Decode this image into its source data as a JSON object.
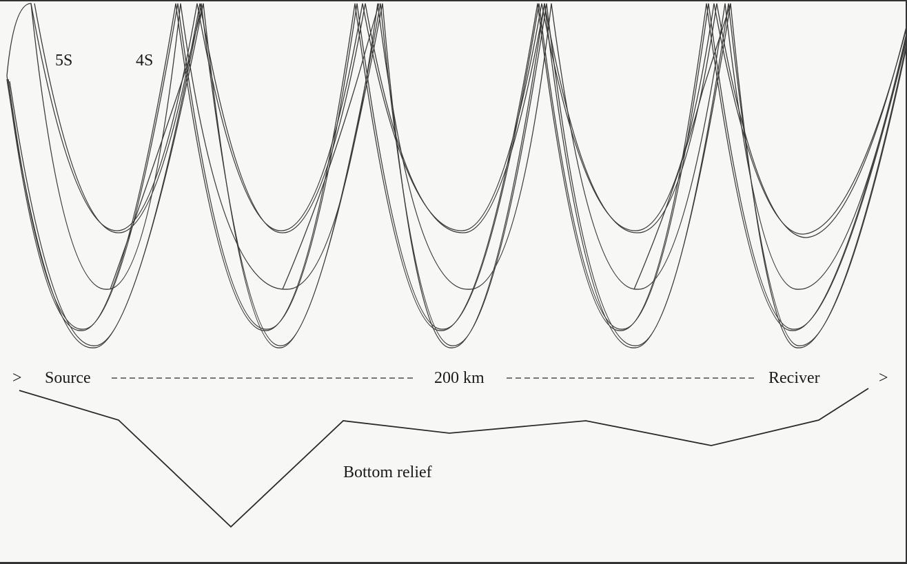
{
  "labels": {
    "ray_5s": "5S",
    "ray_4s": "4S",
    "arrow_left": ">",
    "source": "Source",
    "distance": "200 km",
    "receiver": "Reciver",
    "arrow_right": ">",
    "bottom_relief": "Bottom relief"
  },
  "colors": {
    "background": "#f7f7f5",
    "ink": "#2a2a2a"
  }
}
